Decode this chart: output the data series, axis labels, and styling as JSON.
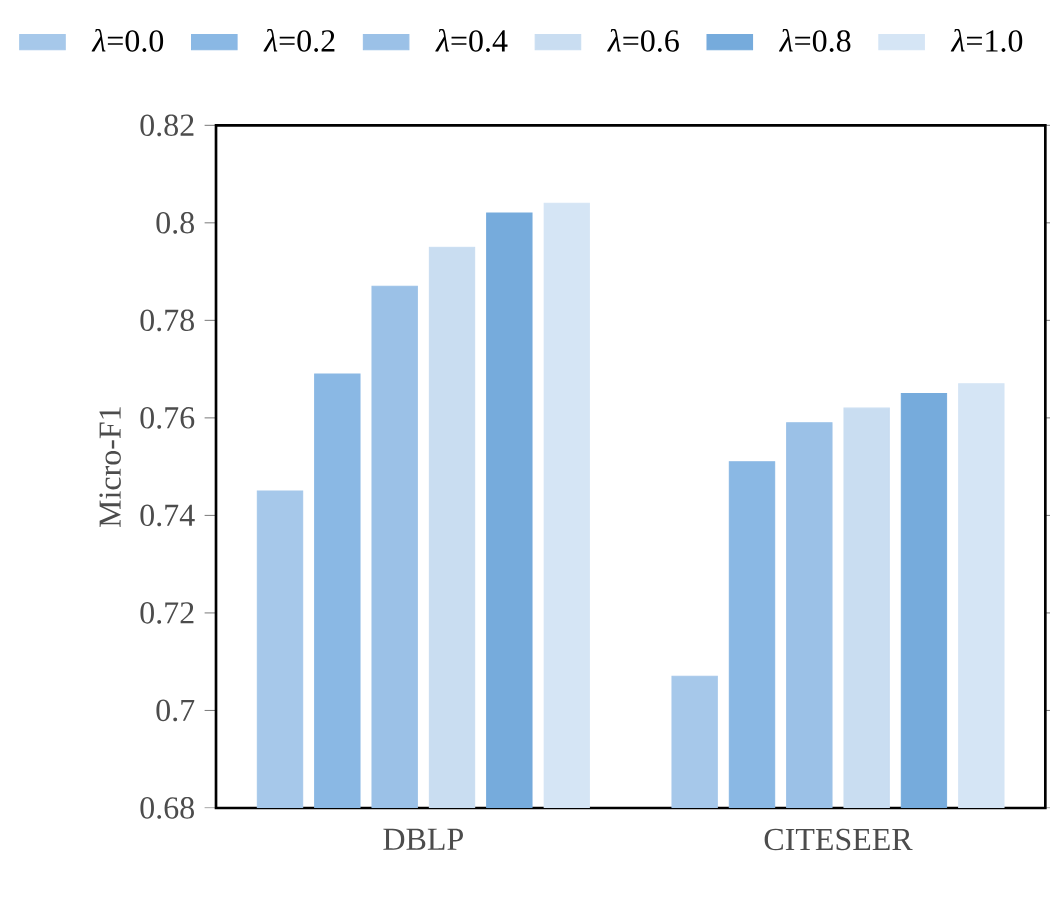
{
  "chart_data": {
    "type": "bar",
    "ylabel": "Micro-F1",
    "categories": [
      "DBLP",
      "CITESEER"
    ],
    "series": [
      {
        "name": "*λ*=0.0",
        "color": "#a6c8ea",
        "values": [
          0.745,
          0.707
        ]
      },
      {
        "name": "*λ*=0.2",
        "color": "#8ab8e4",
        "values": [
          0.769,
          0.751
        ]
      },
      {
        "name": "*λ*=0.4",
        "color": "#9bc1e7",
        "values": [
          0.787,
          0.759
        ]
      },
      {
        "name": "*λ*=0.6",
        "color": "#c9ddf1",
        "values": [
          0.795,
          0.762
        ]
      },
      {
        "name": "*λ*=0.8",
        "color": "#76abdc",
        "values": [
          0.802,
          0.765
        ]
      },
      {
        "name": "*λ*=1.0",
        "color": "#d5e5f5",
        "values": [
          0.804,
          0.767
        ]
      }
    ],
    "ylim": [
      0.68,
      0.82
    ],
    "yticks": [
      0.68,
      0.7,
      0.72,
      0.74,
      0.76,
      0.78,
      0.8,
      0.82
    ],
    "grid": false,
    "legend": "top"
  }
}
